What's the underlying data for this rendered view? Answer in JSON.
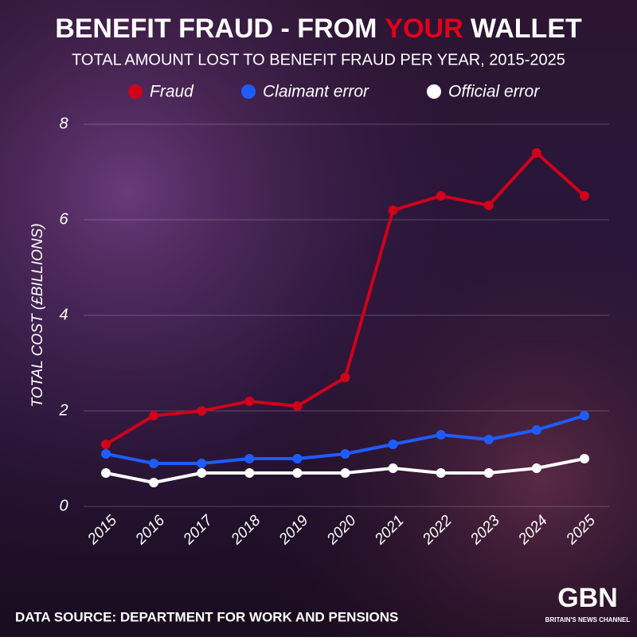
{
  "chart_data": {
    "type": "line",
    "title_parts": [
      "BENEFIT FRAUD - FROM",
      "YOUR",
      "WALLET"
    ],
    "subtitle": "TOTAL AMOUNT LOST TO BENEFIT FRAUD PER YEAR, 2015-2025",
    "ylabel": "TOTAL COST (£BILLIONS)",
    "categories": [
      "2015",
      "2016",
      "2017",
      "2018",
      "2019",
      "2020",
      "2021",
      "2022",
      "2023",
      "2024",
      "2025"
    ],
    "series": [
      {
        "name": "Fraud",
        "color": "#d0021b",
        "values": [
          1.3,
          1.9,
          2.0,
          2.2,
          2.1,
          2.7,
          6.2,
          6.5,
          6.3,
          7.4,
          6.5
        ]
      },
      {
        "name": "Claimant error",
        "color": "#1f5cff",
        "values": [
          1.1,
          0.9,
          0.9,
          1.0,
          1.0,
          1.1,
          1.3,
          1.5,
          1.4,
          1.6,
          1.9
        ]
      },
      {
        "name": "Official error",
        "color": "#ffffff",
        "values": [
          0.7,
          0.5,
          0.7,
          0.7,
          0.7,
          0.7,
          0.8,
          0.7,
          0.7,
          0.8,
          1.0
        ]
      }
    ],
    "ylim": [
      0,
      8
    ],
    "yticks": [
      0,
      2,
      4,
      6,
      8
    ],
    "grid": true,
    "source": "DATA SOURCE: DEPARTMENT FOR WORK AND PENSIONS",
    "logo": "GBN",
    "logo_tagline": "BRITAIN'S NEWS CHANNEL"
  }
}
